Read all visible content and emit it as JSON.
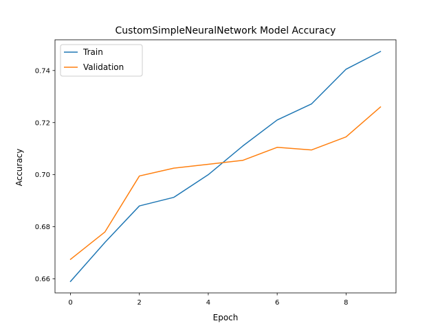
{
  "chart_data": {
    "type": "line",
    "title": "CustomSimpleNeuralNetwork Model Accuracy",
    "xlabel": "Epoch",
    "ylabel": "Accuracy",
    "x": [
      0,
      1,
      2,
      3,
      4,
      5,
      6,
      7,
      8,
      9
    ],
    "xlim": [
      -0.45,
      9.45
    ],
    "ylim": [
      0.6546,
      0.7518
    ],
    "xticks": [
      0,
      2,
      4,
      6,
      8
    ],
    "xtick_labels": [
      "0",
      "2",
      "4",
      "6",
      "8"
    ],
    "yticks": [
      0.66,
      0.68,
      0.7,
      0.72,
      0.74
    ],
    "ytick_labels": [
      "0.66",
      "0.68",
      "0.70",
      "0.72",
      "0.74"
    ],
    "grid": false,
    "legend_position": "top-left",
    "series": [
      {
        "name": "Train",
        "color": "#1f77b4",
        "values": [
          0.659,
          0.674,
          0.688,
          0.6913,
          0.7,
          0.711,
          0.721,
          0.7272,
          0.7405,
          0.7473
        ]
      },
      {
        "name": "Validation",
        "color": "#ff7f0e",
        "values": [
          0.6675,
          0.678,
          0.6995,
          0.7025,
          0.704,
          0.7055,
          0.7105,
          0.7095,
          0.7145,
          0.726
        ]
      }
    ]
  }
}
